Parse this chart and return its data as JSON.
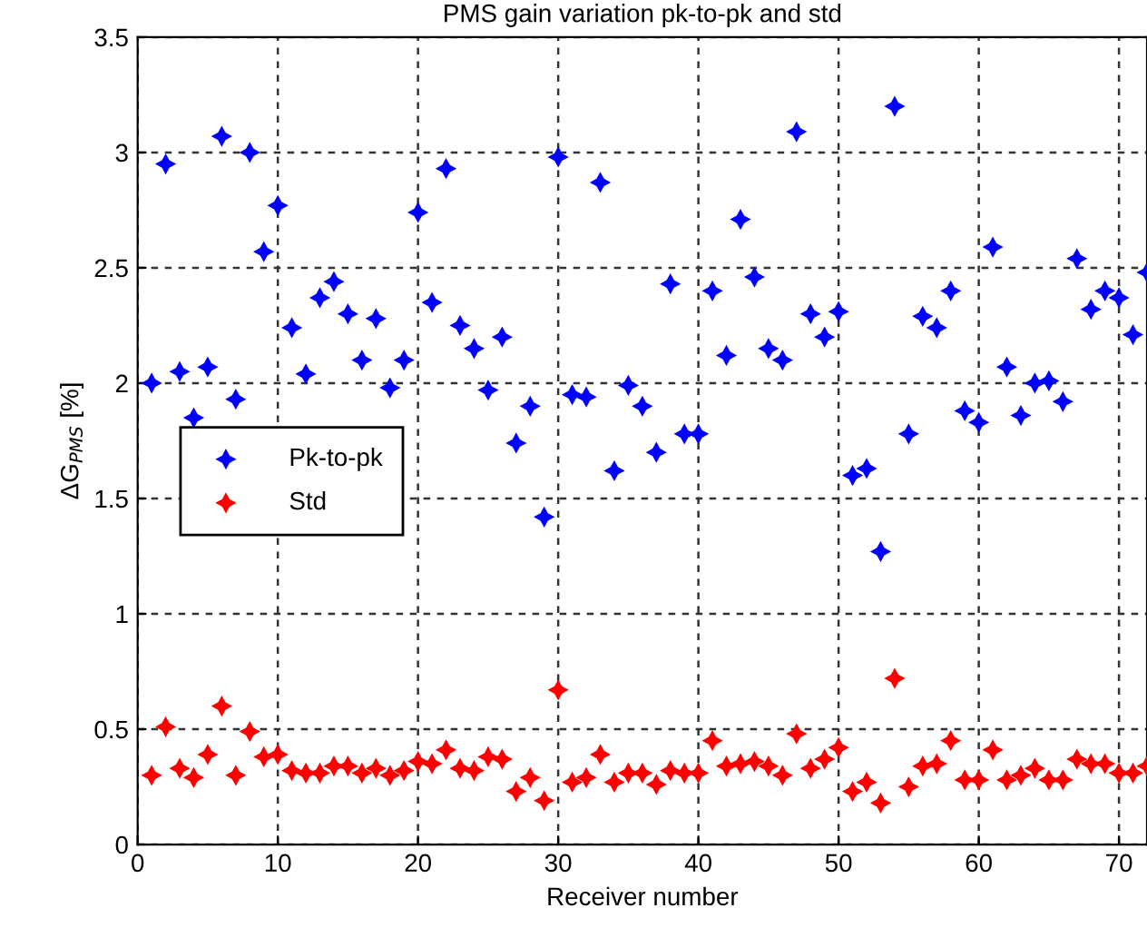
{
  "chart_data": {
    "type": "scatter",
    "title": "PMS gain variation pk-to-pk and std",
    "xlabel": "Receiver number",
    "ylabel": "ΔG$_{PMS}$ [%]",
    "x": [
      1,
      2,
      3,
      4,
      5,
      6,
      7,
      8,
      9,
      10,
      11,
      12,
      13,
      14,
      15,
      16,
      17,
      18,
      19,
      20,
      21,
      22,
      23,
      24,
      25,
      26,
      27,
      28,
      29,
      30,
      31,
      32,
      33,
      34,
      35,
      36,
      37,
      38,
      39,
      40,
      41,
      42,
      43,
      44,
      45,
      46,
      47,
      48,
      49,
      50,
      51,
      52,
      53,
      54,
      55,
      56,
      57,
      58,
      59,
      60,
      61,
      62,
      63,
      64,
      65,
      66,
      67,
      68,
      69,
      70,
      71,
      72
    ],
    "series": [
      {
        "name": "Pk-to-pk",
        "color": "#0000ff",
        "values": [
          2.0,
          2.95,
          2.05,
          1.85,
          2.07,
          3.07,
          1.93,
          3.0,
          2.57,
          2.77,
          2.24,
          2.04,
          2.37,
          2.44,
          2.3,
          2.1,
          2.28,
          1.98,
          2.1,
          2.74,
          2.35,
          2.93,
          2.25,
          2.15,
          1.97,
          2.2,
          1.74,
          1.9,
          1.42,
          2.98,
          1.95,
          1.94,
          2.87,
          1.62,
          1.99,
          1.9,
          1.7,
          2.43,
          1.78,
          1.78,
          2.4,
          2.12,
          2.71,
          2.46,
          2.15,
          2.1,
          3.09,
          2.3,
          2.2,
          2.31,
          1.6,
          1.63,
          1.27,
          3.2,
          1.78,
          2.29,
          2.24,
          2.4,
          1.88,
          1.83,
          2.59,
          2.07,
          1.86,
          2.0,
          2.01,
          1.92,
          2.54,
          2.32,
          2.4,
          2.37,
          2.21,
          2.48
        ]
      },
      {
        "name": "Std",
        "color": "#ff0000",
        "values": [
          0.3,
          0.51,
          0.33,
          0.29,
          0.39,
          0.6,
          0.3,
          0.49,
          0.38,
          0.39,
          0.32,
          0.31,
          0.31,
          0.34,
          0.34,
          0.31,
          0.33,
          0.3,
          0.32,
          0.36,
          0.35,
          0.41,
          0.33,
          0.32,
          0.38,
          0.37,
          0.23,
          0.29,
          0.19,
          0.67,
          0.27,
          0.29,
          0.39,
          0.27,
          0.31,
          0.31,
          0.26,
          0.32,
          0.31,
          0.31,
          0.45,
          0.34,
          0.35,
          0.36,
          0.34,
          0.3,
          0.48,
          0.33,
          0.37,
          0.42,
          0.23,
          0.27,
          0.18,
          0.72,
          0.25,
          0.34,
          0.35,
          0.45,
          0.28,
          0.28,
          0.41,
          0.28,
          0.3,
          0.33,
          0.28,
          0.28,
          0.37,
          0.35,
          0.35,
          0.31,
          0.31,
          0.34
        ]
      }
    ],
    "xlim": [
      0,
      72
    ],
    "xticks": [
      0,
      10,
      20,
      30,
      40,
      50,
      60,
      70
    ],
    "ylim": [
      0,
      3.5
    ],
    "yticks": [
      0,
      0.5,
      1,
      1.5,
      2,
      2.5,
      3,
      3.5
    ],
    "grid": true,
    "legend": "center left",
    "marker": "star"
  }
}
